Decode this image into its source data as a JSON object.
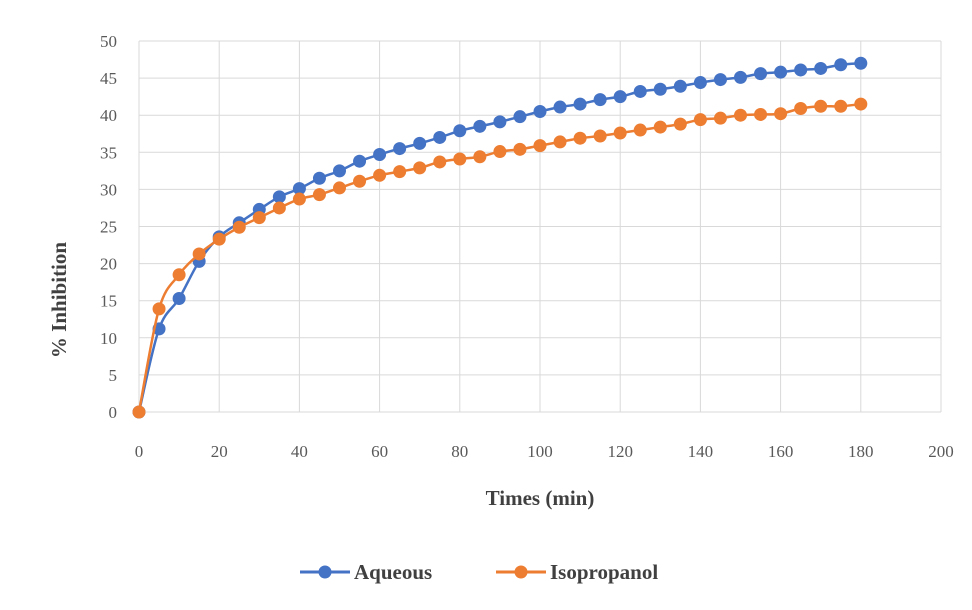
{
  "chart_data": {
    "type": "line",
    "title": "",
    "xlabel": "Times (min)",
    "ylabel": "% Inhibition",
    "xlim": [
      0,
      200
    ],
    "ylim": [
      0,
      50
    ],
    "x_ticks": [
      0,
      20,
      40,
      60,
      80,
      100,
      120,
      140,
      160,
      180,
      200
    ],
    "y_ticks": [
      0,
      5,
      10,
      15,
      20,
      25,
      30,
      35,
      40,
      45,
      50
    ],
    "grid": true,
    "legend_position": "bottom",
    "x": [
      0,
      5,
      10,
      15,
      20,
      25,
      30,
      35,
      40,
      45,
      50,
      55,
      60,
      65,
      70,
      75,
      80,
      85,
      90,
      95,
      100,
      105,
      110,
      115,
      120,
      125,
      130,
      135,
      140,
      145,
      150,
      155,
      160,
      165,
      170,
      175,
      180
    ],
    "series": [
      {
        "name": "Aqueous",
        "color": "#4472C4",
        "values": [
          0,
          11.2,
          15.3,
          20.3,
          23.6,
          25.5,
          27.3,
          29.0,
          30.1,
          31.5,
          32.5,
          33.8,
          34.7,
          35.5,
          36.2,
          37.0,
          37.9,
          38.5,
          39.1,
          39.8,
          40.5,
          41.1,
          41.5,
          42.1,
          42.5,
          43.2,
          43.5,
          43.9,
          44.4,
          44.8,
          45.1,
          45.6,
          45.8,
          46.1,
          46.3,
          46.8,
          47.0
        ]
      },
      {
        "name": "Isopropanol",
        "color": "#ED7D31",
        "values": [
          0,
          13.9,
          18.5,
          21.3,
          23.3,
          24.9,
          26.2,
          27.5,
          28.7,
          29.3,
          30.2,
          31.1,
          31.9,
          32.4,
          32.9,
          33.7,
          34.1,
          34.4,
          35.1,
          35.4,
          35.9,
          36.4,
          36.9,
          37.2,
          37.6,
          38.0,
          38.4,
          38.8,
          39.4,
          39.6,
          40.0,
          40.1,
          40.2,
          40.9,
          41.2,
          41.2,
          41.5
        ]
      }
    ]
  }
}
